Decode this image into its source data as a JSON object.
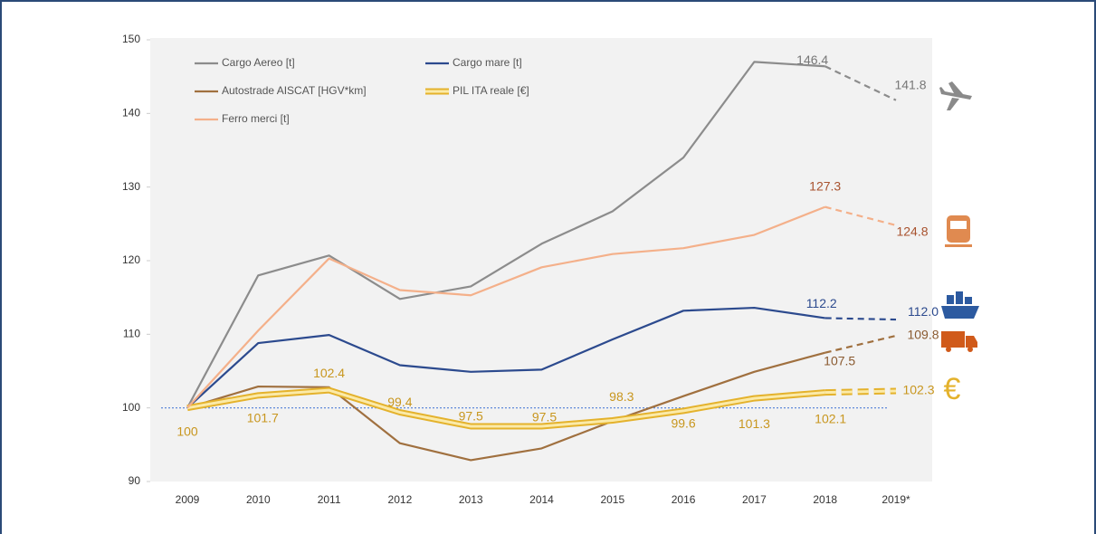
{
  "chart_data": {
    "type": "line",
    "categories": [
      "2009",
      "2010",
      "2011",
      "2012",
      "2013",
      "2014",
      "2015",
      "2016",
      "2017",
      "2018",
      "2019*"
    ],
    "ylim": [
      90,
      150
    ],
    "yticks": [
      90,
      100,
      110,
      120,
      130,
      140,
      150
    ],
    "reference_line": {
      "value": 100,
      "color": "#4f7fd6"
    },
    "series": [
      {
        "name": "Cargo Aereo [t]",
        "color": "#8c8c8c",
        "label_color": "#777777",
        "values": [
          100,
          118,
          120.7,
          114.8,
          116.5,
          122.3,
          126.7,
          134,
          147,
          146.4,
          141.8
        ],
        "value_labels": [
          null,
          null,
          null,
          null,
          null,
          null,
          null,
          null,
          null,
          "146.4",
          "141.8"
        ]
      },
      {
        "name": "Cargo mare [t]",
        "color": "#2c4a8e",
        "label_color": "#2c4a8e",
        "values": [
          100,
          108.8,
          109.9,
          105.8,
          104.9,
          105.2,
          109.3,
          113.2,
          113.6,
          112.2,
          112.0
        ],
        "value_labels": [
          null,
          null,
          null,
          null,
          null,
          null,
          null,
          null,
          null,
          "112.2",
          "112.0"
        ]
      },
      {
        "name": "Autostrade AISCAT [HGV*km]",
        "color": "#a0703f",
        "label_color": "#8a5a30",
        "values": [
          100,
          102.9,
          102.8,
          95.2,
          92.9,
          94.5,
          98.2,
          101.6,
          104.9,
          107.5,
          109.8
        ],
        "value_labels": [
          null,
          null,
          null,
          null,
          null,
          null,
          null,
          null,
          null,
          "107.5",
          "109.8"
        ]
      },
      {
        "name": "PIL ITA reale [€]",
        "color": "#e4b22c",
        "label_color": "#c8961e",
        "values": [
          100,
          101.7,
          102.4,
          99.4,
          97.5,
          97.5,
          98.3,
          99.6,
          101.3,
          102.1,
          102.3
        ],
        "value_labels": [
          "100",
          "101.7",
          "102.4",
          "99.4",
          "97.5",
          "97.5",
          "98.3",
          "99.6",
          "101.3",
          "102.1",
          "102.3"
        ]
      },
      {
        "name": "Ferro merci [t]",
        "color": "#f4b08a",
        "label_color": "#a8522e",
        "values": [
          100,
          110.5,
          120.3,
          116,
          115.3,
          119.1,
          120.9,
          121.7,
          123.5,
          127.3,
          124.8
        ],
        "value_labels": [
          null,
          null,
          null,
          null,
          null,
          null,
          null,
          null,
          null,
          "127.3",
          "124.8"
        ]
      }
    ]
  }
}
